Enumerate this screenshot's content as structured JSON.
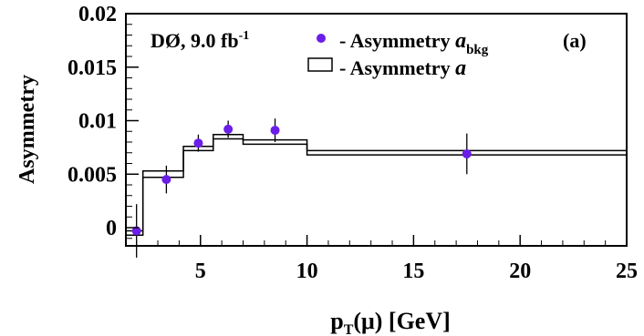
{
  "chart_data": {
    "type": "scatter",
    "xlabel_main": "p",
    "xlabel_sub": "T",
    "xlabel_rest": "(μ) [GeV]",
    "ylabel": "Asymmetry",
    "xlim": [
      1.5,
      25
    ],
    "ylim": [
      -0.0017,
      0.02
    ],
    "x_ticks": [
      5,
      10,
      15,
      20,
      25
    ],
    "y_ticks": [
      0,
      0.005,
      0.01,
      0.015,
      0.02
    ],
    "y_tick_labels": [
      "0",
      "0.005",
      "0.01",
      "0.015",
      "0.02"
    ],
    "grid": false,
    "legend_position": "top-right",
    "experiment_label_main": "DØ, 9.0 fb",
    "experiment_label_sup": "-1",
    "panel_label": "(a)",
    "legend": [
      {
        "label_prefix": "- Asymmetry ",
        "label_italic": "a",
        "label_sub": "bkg",
        "marker": "dot"
      },
      {
        "label_prefix": "- Asymmetry ",
        "label_italic": "a",
        "label_sub": "",
        "marker": "box"
      }
    ],
    "points": {
      "name": "Asymmetry a_bkg",
      "color": "#6a1ee8",
      "x": [
        2.0,
        3.4,
        4.9,
        6.3,
        8.5,
        17.5
      ],
      "y": [
        -0.0003,
        0.0045,
        0.0079,
        0.0092,
        0.0091,
        0.0069
      ],
      "yerr": [
        0.0025,
        0.0013,
        0.0008,
        0.0008,
        0.0011,
        0.0019
      ]
    },
    "histogram": {
      "name": "Asymmetry a",
      "bins": [
        1.5,
        2.3,
        4.2,
        5.6,
        7.0,
        10.0,
        25.0
      ],
      "center": [
        -0.0005,
        0.005,
        0.0074,
        0.0085,
        0.008,
        0.007
      ],
      "band": [
        0.0002,
        0.0003,
        0.0002,
        0.0002,
        0.0002,
        0.0002
      ]
    }
  }
}
